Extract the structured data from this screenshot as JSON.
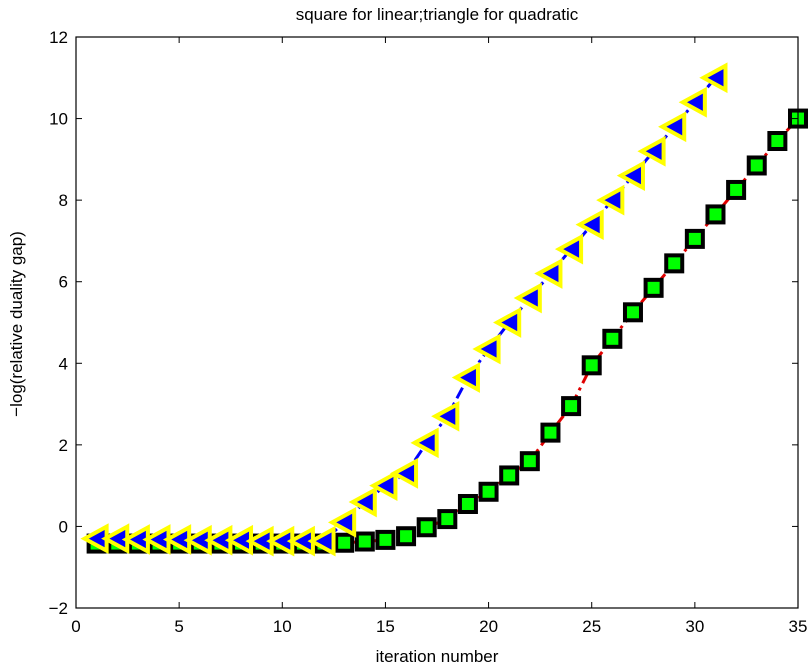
{
  "chart_data": {
    "type": "line",
    "title": "square for linear;triangle for quadratic",
    "xlabel": "iteration number",
    "ylabel": "−log(relative duality gap)",
    "xlim": [
      0,
      35
    ],
    "ylim": [
      -2,
      12
    ],
    "xticks": [
      0,
      5,
      10,
      15,
      20,
      25,
      30,
      35
    ],
    "yticks": [
      -2,
      0,
      2,
      4,
      6,
      8,
      10,
      12
    ],
    "xtick_labels": [
      "0",
      "5",
      "10",
      "15",
      "20",
      "25",
      "30",
      "35"
    ],
    "ytick_labels": [
      "−2",
      "0",
      "2",
      "4",
      "6",
      "8",
      "10",
      "12"
    ],
    "grid": false,
    "legend": "none",
    "series": [
      {
        "marker": "square",
        "line_color": "#e00000",
        "line_style": "dashdot",
        "marker_face": "#00ff00",
        "marker_edge": "#000000",
        "x": [
          1,
          2,
          3,
          4,
          5,
          6,
          7,
          8,
          9,
          10,
          11,
          12,
          13,
          14,
          15,
          16,
          17,
          18,
          19,
          20,
          21,
          22,
          23,
          24,
          25,
          26,
          27,
          28,
          29,
          30,
          31,
          32,
          33,
          34,
          35
        ],
        "y": [
          -0.42,
          -0.42,
          -0.42,
          -0.42,
          -0.42,
          -0.42,
          -0.42,
          -0.42,
          -0.42,
          -0.42,
          -0.42,
          -0.42,
          -0.4,
          -0.37,
          -0.33,
          -0.24,
          -0.02,
          0.18,
          0.55,
          0.85,
          1.25,
          1.6,
          2.3,
          2.95,
          3.95,
          4.6,
          5.25,
          5.85,
          6.45,
          7.05,
          7.65,
          8.25,
          8.85,
          9.45,
          10.0
        ]
      },
      {
        "marker": "triangle-left",
        "line_color": "#0000ff",
        "line_style": "dashdot",
        "marker_face": "#0000ff",
        "marker_edge": "#ffff00",
        "x": [
          1,
          2,
          3,
          4,
          5,
          6,
          7,
          8,
          9,
          10,
          11,
          12,
          13,
          14,
          15,
          16,
          17,
          18,
          19,
          20,
          21,
          22,
          23,
          24,
          25,
          26,
          27,
          28,
          29,
          30,
          31
        ],
        "y": [
          -0.3,
          -0.3,
          -0.32,
          -0.32,
          -0.32,
          -0.34,
          -0.34,
          -0.34,
          -0.36,
          -0.36,
          -0.36,
          -0.36,
          0.1,
          0.6,
          1.0,
          1.3,
          2.05,
          2.7,
          3.65,
          4.35,
          5.0,
          5.6,
          6.2,
          6.8,
          7.4,
          8.0,
          8.6,
          9.2,
          9.8,
          10.4,
          11.0
        ]
      }
    ]
  }
}
